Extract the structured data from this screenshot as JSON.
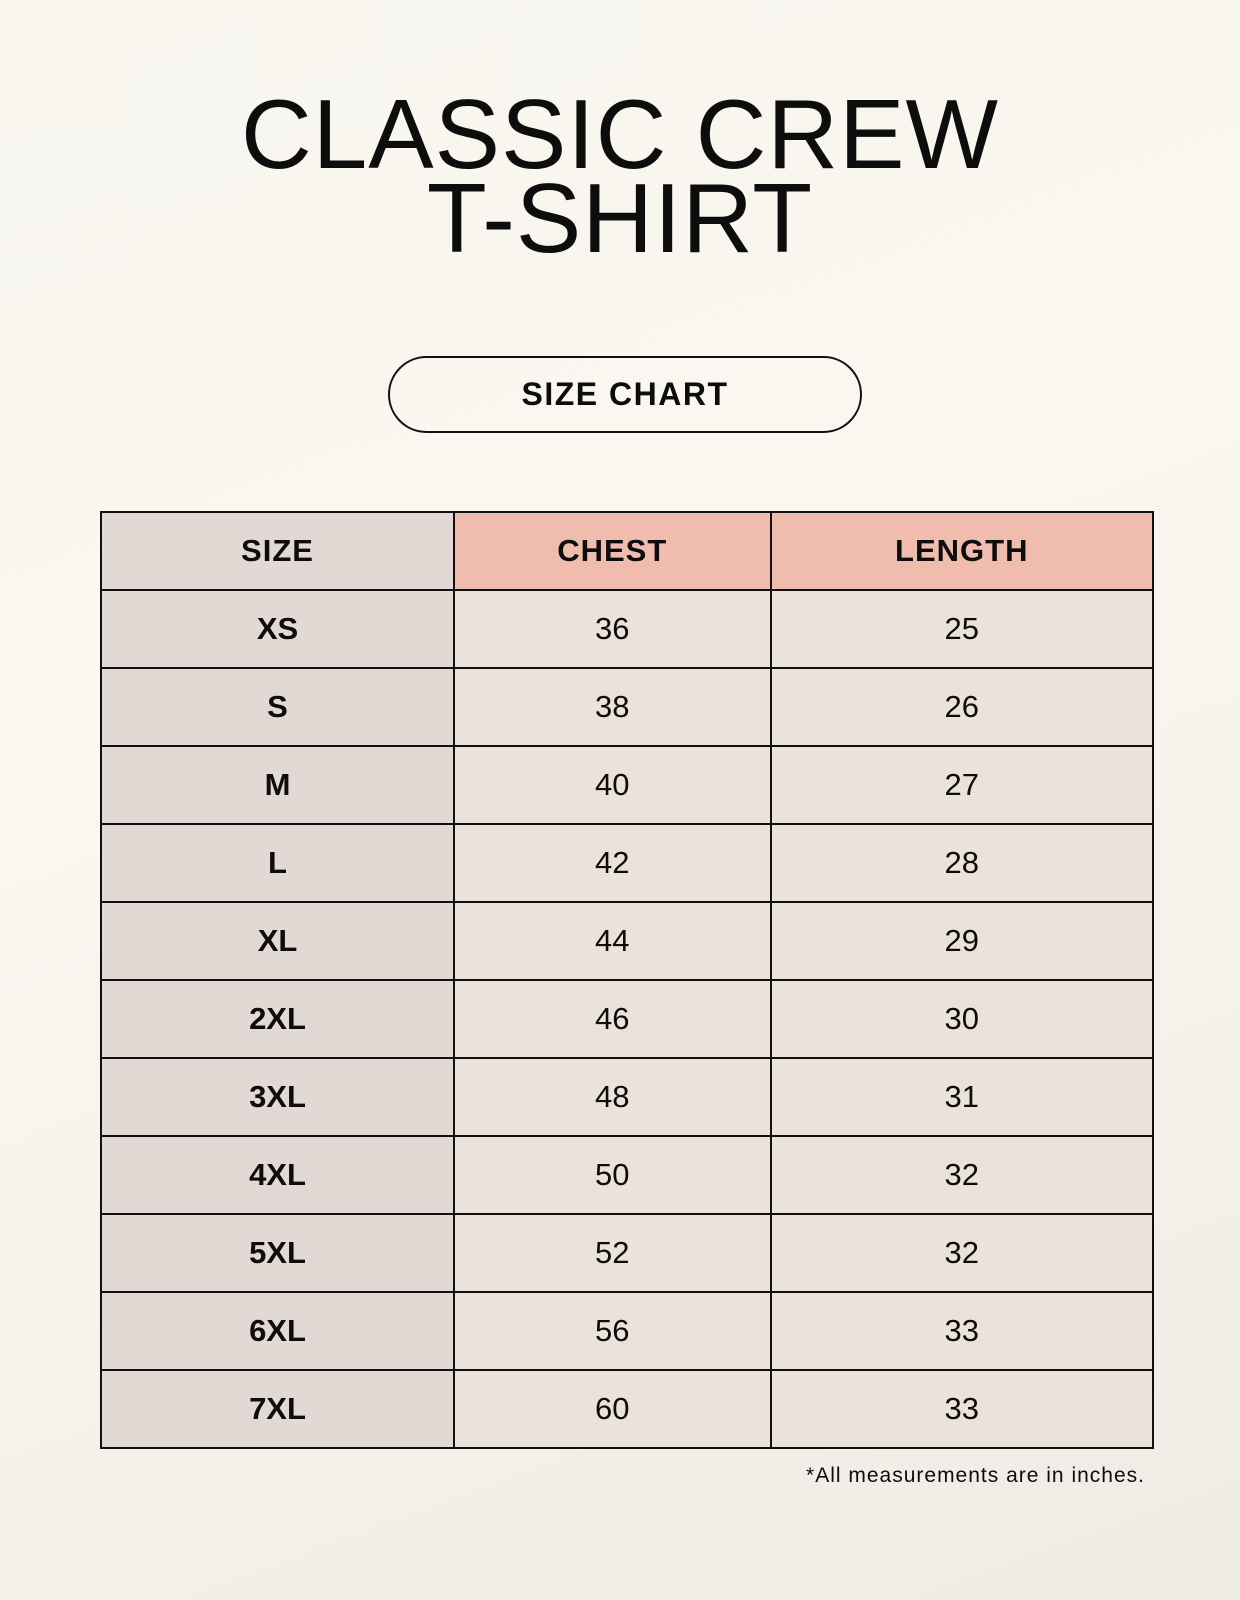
{
  "title_line1": "CLASSIC CREW",
  "title_line2": "T-SHIRT",
  "badge": "SIZE CHART",
  "table": {
    "headers": [
      "SIZE",
      "CHEST",
      "LENGTH"
    ],
    "rows": [
      [
        "XS",
        "36",
        "25"
      ],
      [
        "S",
        "38",
        "26"
      ],
      [
        "M",
        "40",
        "27"
      ],
      [
        "L",
        "42",
        "28"
      ],
      [
        "XL",
        "44",
        "29"
      ],
      [
        "2XL",
        "46",
        "30"
      ],
      [
        "3XL",
        "48",
        "31"
      ],
      [
        "4XL",
        "50",
        "32"
      ],
      [
        "5XL",
        "52",
        "32"
      ],
      [
        "6XL",
        "56",
        "33"
      ],
      [
        "7XL",
        "60",
        "33"
      ]
    ]
  },
  "footnote": "*All measurements are in inches.",
  "colors": {
    "size_column": "#e2d9d4",
    "header_accent": "#efbcae",
    "value_cells": "#ebe3d9"
  }
}
